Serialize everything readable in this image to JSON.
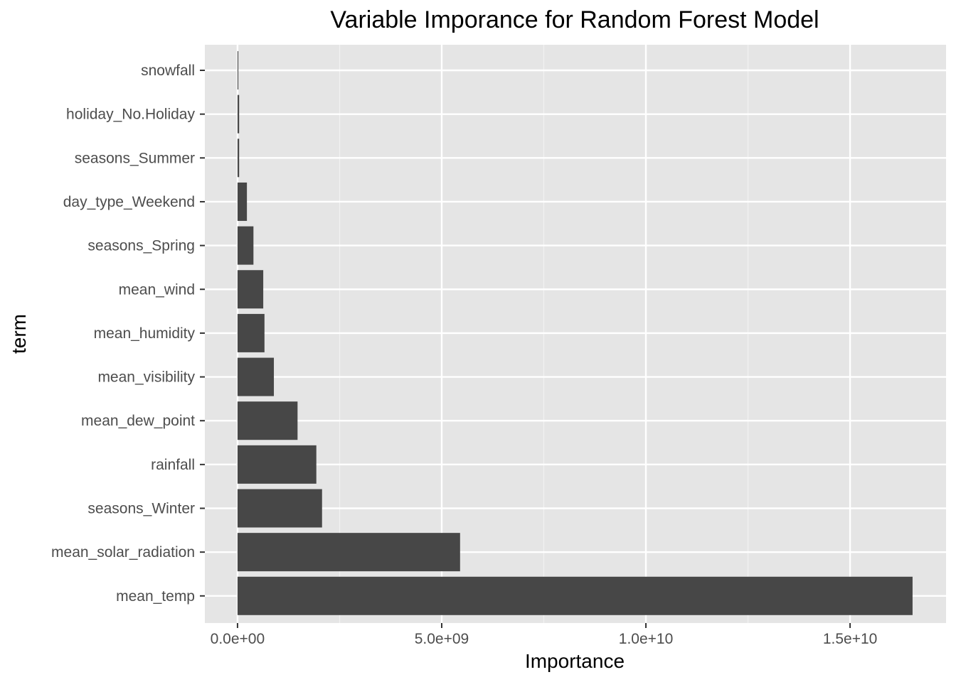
{
  "chart_data": {
    "type": "bar",
    "orientation": "horizontal",
    "title": "Variable Imporance for Random Forest Model",
    "xlabel": "Importance",
    "ylabel": "term",
    "categories": [
      "snowfall",
      "holiday_No.Holiday",
      "seasons_Summer",
      "day_type_Weekend",
      "seasons_Spring",
      "mean_wind",
      "mean_humidity",
      "mean_visibility",
      "mean_dew_point",
      "rainfall",
      "seasons_Winter",
      "mean_solar_radiation",
      "mean_temp"
    ],
    "values": [
      20000000,
      40000000,
      40000000,
      230000000,
      390000000,
      630000000,
      660000000,
      890000000,
      1470000000,
      1930000000,
      2070000000,
      5450000000,
      16530000000
    ],
    "xlim": [
      -800000000,
      17350000000
    ],
    "x_ticks": [
      0,
      5000000000,
      10000000000,
      15000000000
    ],
    "x_tick_labels": [
      "0.0e+00",
      "5.0e+09",
      "1.0e+10",
      "1.5e+10"
    ],
    "grid": true,
    "legend": "none",
    "colors": {
      "bar": "#474747",
      "panel": "#e5e5e5",
      "grid_major": "#ffffff",
      "grid_minor": "#f2f2f2",
      "tick": "#333333"
    }
  }
}
